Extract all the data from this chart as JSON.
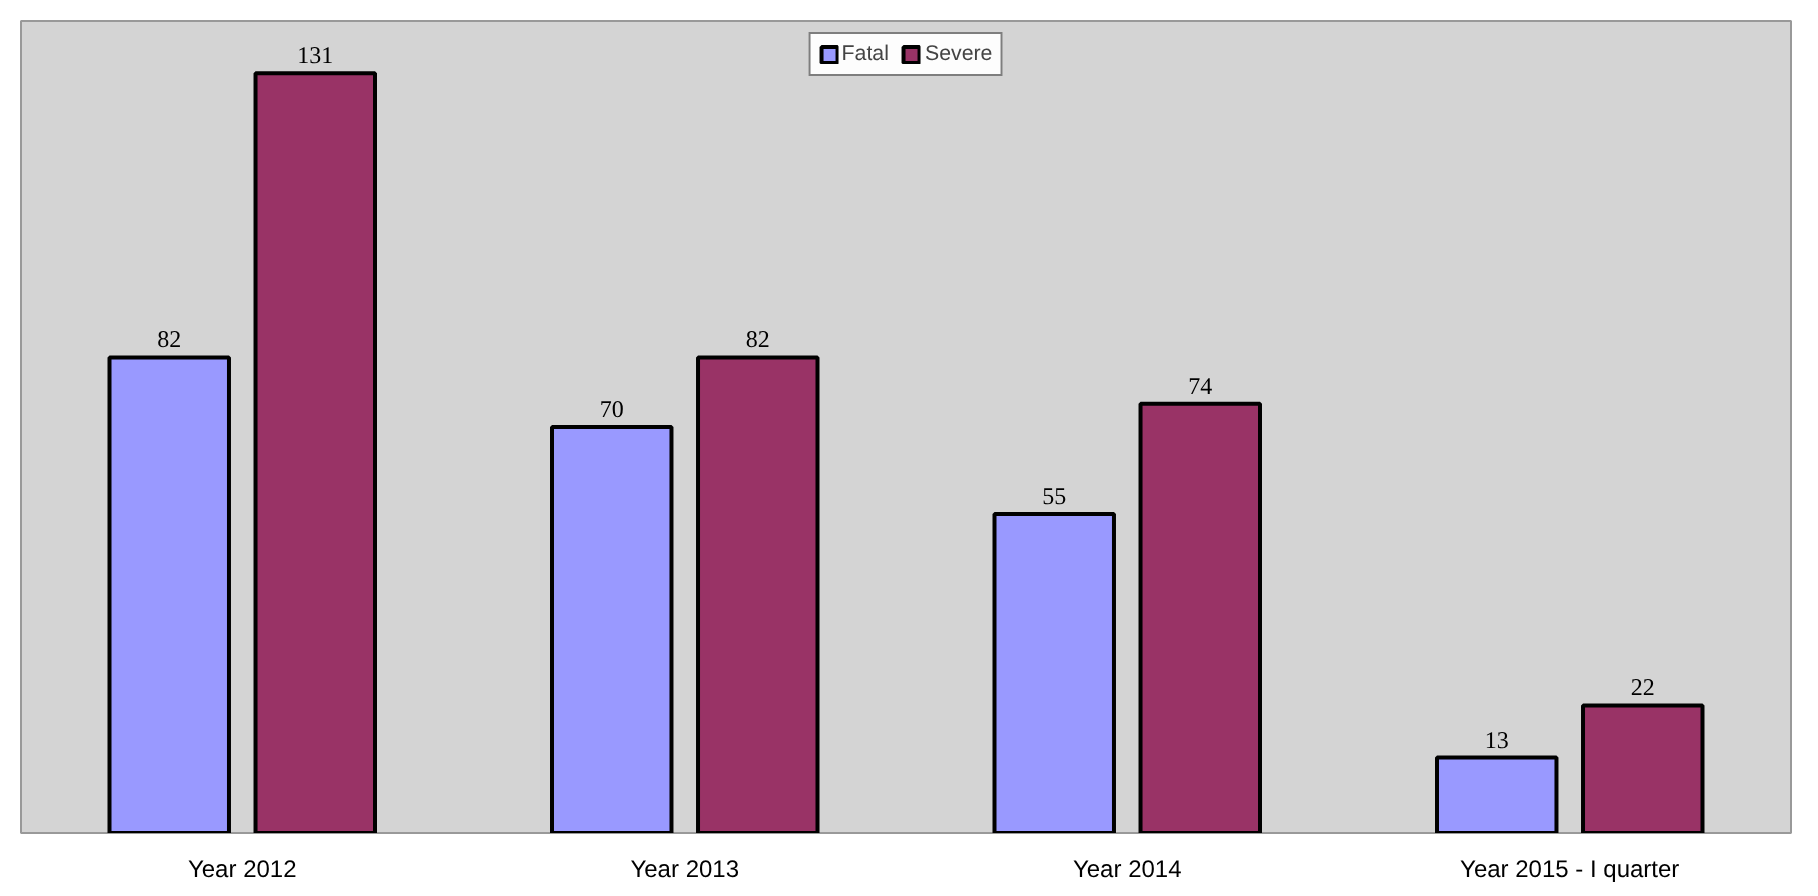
{
  "chart_data": {
    "type": "bar",
    "categories": [
      "Year 2012",
      "Year 2013",
      "Year 2014",
      "Year 2015 - I quarter"
    ],
    "series": [
      {
        "name": "Fatal",
        "color": "#9999ff",
        "values": [
          82,
          70,
          55,
          13
        ]
      },
      {
        "name": "Severe",
        "color": "#993366",
        "values": [
          131,
          82,
          74,
          22
        ]
      }
    ],
    "ylim": [
      0,
      140
    ],
    "tick_labels": "x",
    "data_labels": true,
    "legend": "top",
    "grid": false
  }
}
